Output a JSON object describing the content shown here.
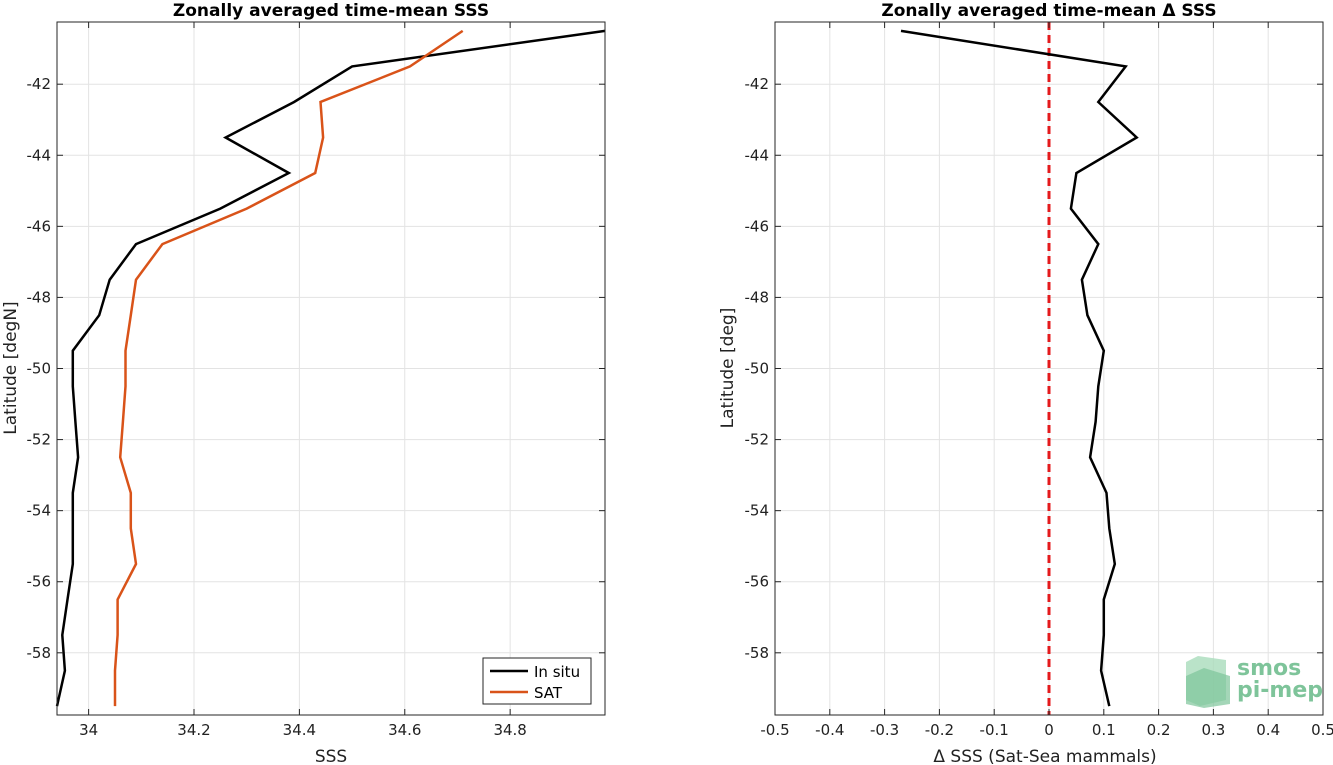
{
  "chart_data": [
    {
      "type": "line",
      "title": "Zonally averaged time-mean SSS",
      "xlabel": "SSS",
      "ylabel": "Latitude [degN]",
      "xlim": [
        33.94,
        34.98
      ],
      "ylim": [
        -59.75,
        -40.25
      ],
      "xticks": [
        34,
        34.2,
        34.4,
        34.6,
        34.8
      ],
      "xtick_labels": [
        "34",
        "34.2",
        "34.4",
        "34.6",
        "34.8"
      ],
      "yticks": [
        -42,
        -44,
        -46,
        -48,
        -50,
        -52,
        -54,
        -56,
        -58
      ],
      "ytick_labels": [
        "-42",
        "-44",
        "-46",
        "-48",
        "-50",
        "-52",
        "-54",
        "-56",
        "-58"
      ],
      "grid": true,
      "legend_position": "bottom-right",
      "series": [
        {
          "name": "In situ",
          "color": "#000000",
          "lat": [
            -40.5,
            -41.5,
            -42.5,
            -43.5,
            -44.5,
            -45.5,
            -46.5,
            -47.5,
            -48.5,
            -49.5,
            -50.5,
            -51.5,
            -52.5,
            -53.5,
            -54.5,
            -55.5,
            -56.5,
            -57.5,
            -58.5,
            -59.5
          ],
          "values": [
            34.98,
            34.5,
            34.39,
            34.26,
            34.38,
            34.25,
            34.09,
            34.04,
            34.02,
            33.97,
            33.97,
            33.975,
            33.98,
            33.97,
            33.97,
            33.97,
            33.96,
            33.95,
            33.955,
            33.94
          ]
        },
        {
          "name": "SAT",
          "color": "#d95319",
          "lat": [
            -40.5,
            -41.5,
            -42.5,
            -43.5,
            -44.5,
            -45.5,
            -46.5,
            -47.5,
            -48.5,
            -49.5,
            -50.5,
            -51.5,
            -52.5,
            -53.5,
            -54.5,
            -55.5,
            -56.5,
            -57.5,
            -58.5,
            -59.5
          ],
          "values": [
            34.71,
            34.61,
            34.44,
            34.445,
            34.43,
            34.3,
            34.14,
            34.09,
            34.08,
            34.07,
            34.07,
            34.065,
            34.06,
            34.08,
            34.08,
            34.09,
            34.055,
            34.055,
            34.05,
            34.05
          ]
        }
      ]
    },
    {
      "type": "line",
      "title": "Zonally averaged time-mean Δ SSS",
      "xlabel": "Δ SSS (Sat-Sea mammals)",
      "ylabel": "Latitude [deg]",
      "xlim": [
        -0.5,
        0.5
      ],
      "ylim": [
        -59.75,
        -40.25
      ],
      "xticks": [
        -0.5,
        -0.4,
        -0.3,
        -0.2,
        -0.1,
        0,
        0.1,
        0.2,
        0.3,
        0.4,
        0.5
      ],
      "xtick_labels": [
        "-0.5",
        "-0.4",
        "-0.3",
        "-0.2",
        "-0.1",
        "0",
        "0.1",
        "0.2",
        "0.3",
        "0.4",
        "0.5"
      ],
      "yticks": [
        -42,
        -44,
        -46,
        -48,
        -50,
        -52,
        -54,
        -56,
        -58
      ],
      "ytick_labels": [
        "-42",
        "-44",
        "-46",
        "-48",
        "-50",
        "-52",
        "-54",
        "-56",
        "-58"
      ],
      "grid": true,
      "reference_line": {
        "x": 0,
        "color": "#e41a1c",
        "style": "dashed"
      },
      "series": [
        {
          "color": "#000000",
          "lat": [
            -40.5,
            -41.5,
            -42.5,
            -43.5,
            -44.5,
            -45.5,
            -46.5,
            -47.5,
            -48.5,
            -49.5,
            -50.5,
            -51.5,
            -52.5,
            -53.5,
            -54.5,
            -55.5,
            -56.5,
            -57.5,
            -58.5,
            -59.5
          ],
          "values": [
            -0.27,
            0.14,
            0.09,
            0.16,
            0.05,
            0.04,
            0.09,
            0.06,
            0.07,
            0.1,
            0.09,
            0.085,
            0.075,
            0.105,
            0.11,
            0.12,
            0.1,
            0.1,
            0.095,
            0.11
          ]
        }
      ]
    }
  ],
  "logo": {
    "line1": "smos",
    "line2": "pi-mep"
  }
}
